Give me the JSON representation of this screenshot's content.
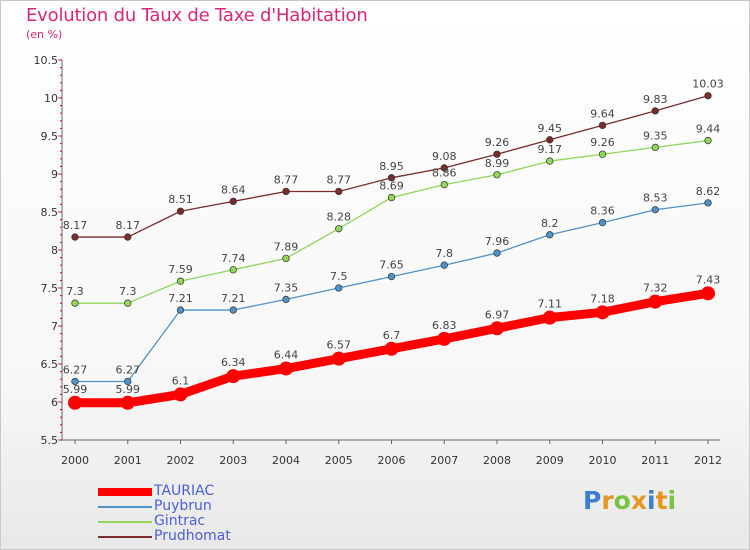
{
  "chart_data": {
    "type": "line",
    "title": "Evolution du Taux de Taxe d'Habitation",
    "subtitle": "(en %)",
    "x": [
      "2000",
      "2001",
      "2002",
      "2003",
      "2004",
      "2005",
      "2006",
      "2007",
      "2008",
      "2009",
      "2010",
      "2011",
      "2012"
    ],
    "ylim": [
      5.5,
      10.5
    ],
    "yticks": [
      "5.5",
      "6",
      "6.5",
      "7",
      "7.5",
      "8",
      "8.5",
      "9",
      "9.5",
      "10",
      "10.5"
    ],
    "grid": false,
    "legend_position": "bottom-left",
    "series": [
      {
        "name": "TAURIAC",
        "color": "#ff0000",
        "values": [
          5.99,
          5.99,
          6.1,
          6.34,
          6.44,
          6.57,
          6.7,
          6.83,
          6.97,
          7.11,
          7.18,
          7.32,
          7.43
        ],
        "labels": [
          "5.99",
          "5.99",
          "6.1",
          "6.34",
          "6.44",
          "6.57",
          "6.7",
          "6.83",
          "6.97",
          "7.11",
          "7.18",
          "7.32",
          "7.43"
        ]
      },
      {
        "name": "Puybrun",
        "color": "#4f92c8",
        "values": [
          6.27,
          6.27,
          7.21,
          7.21,
          7.35,
          7.5,
          7.65,
          7.8,
          7.96,
          8.2,
          8.36,
          8.53,
          8.62
        ],
        "labels": [
          "6.27",
          "6.27",
          "7.21",
          "7.21",
          "7.35",
          "7.5",
          "7.65",
          "7.8",
          "7.96",
          "8.2",
          "8.36",
          "8.53",
          "8.62"
        ]
      },
      {
        "name": "Gintrac",
        "color": "#8fd65a",
        "values": [
          7.3,
          7.3,
          7.59,
          7.74,
          7.89,
          8.28,
          8.69,
          8.86,
          8.99,
          9.17,
          9.26,
          9.35,
          9.44
        ],
        "labels": [
          "7.3",
          "7.3",
          "7.59",
          "7.74",
          "7.89",
          "8.28",
          "8.69",
          "8.86",
          "8.99",
          "9.17",
          "9.26",
          "9.35",
          "9.44"
        ]
      },
      {
        "name": "Prudhomat",
        "color": "#7a2b2b",
        "values": [
          8.17,
          8.17,
          8.51,
          8.64,
          8.77,
          8.77,
          8.95,
          9.08,
          9.26,
          9.45,
          9.64,
          9.83,
          10.03
        ],
        "labels": [
          "8.17",
          "8.17",
          "8.51",
          "8.64",
          "8.77",
          "8.77",
          "8.95",
          "9.08",
          "9.26",
          "9.45",
          "9.64",
          "9.83",
          "10.03"
        ]
      }
    ]
  },
  "logo": {
    "letters": [
      "P",
      "r",
      "o",
      "x",
      "i",
      "t",
      "i"
    ],
    "colors": [
      "#3a7fd0",
      "#e8961e",
      "#7cc242",
      "#e8961e",
      "#3a7fd0",
      "#e8961e",
      "#7cc242"
    ]
  }
}
